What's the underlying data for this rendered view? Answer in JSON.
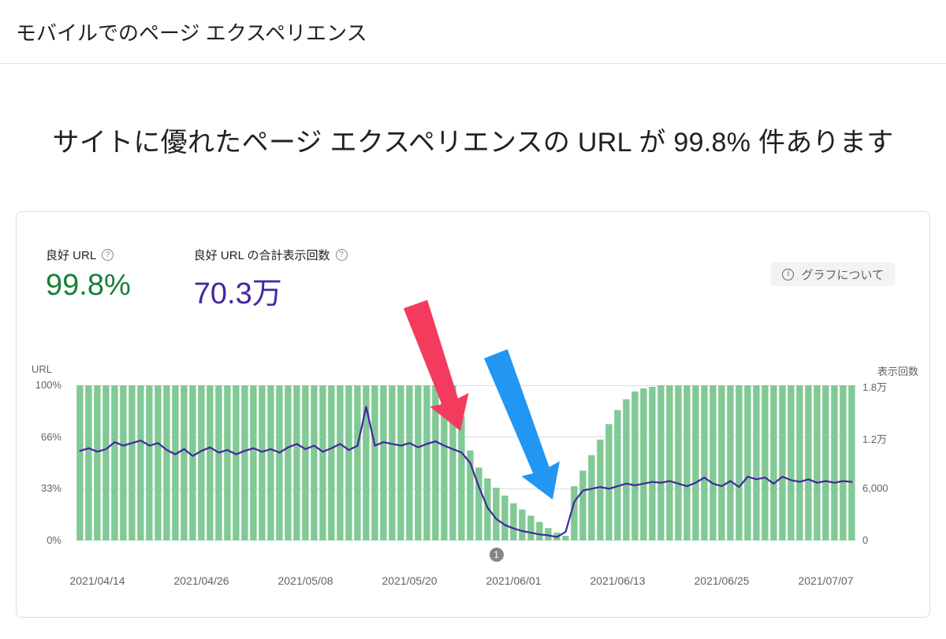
{
  "header": {
    "title": "モバイルでのページ エクスペリエンス"
  },
  "hero": {
    "title": "サイトに優れたページ エクスペリエンスの URL が 99.8% 件あります"
  },
  "card": {
    "metrics": [
      {
        "label": "良好 URL",
        "value": "99.8%",
        "color": "#188038"
      },
      {
        "label": "良好 URL の合計表示回数",
        "value": "70.3万",
        "color": "#4527a0"
      }
    ],
    "about_button": {
      "label": "グラフについて",
      "icon": "i"
    },
    "help_icon_glyph": "?"
  },
  "chart_data": {
    "type": "bar+line",
    "grid": true,
    "legend": "none",
    "left_axis": {
      "title": "URL",
      "max": 100,
      "ticks": [
        {
          "label": "100%",
          "value": 100
        },
        {
          "label": "66%",
          "value": 66.67
        },
        {
          "label": "33%",
          "value": 33.33
        },
        {
          "label": "0%",
          "value": 0
        }
      ]
    },
    "right_axis": {
      "title": "表示回数",
      "max": 1.8,
      "ticks": [
        {
          "label": "1.8万",
          "value": 1.8
        },
        {
          "label": "1.2万",
          "value": 1.2
        },
        {
          "label": "6,000",
          "value": 0.6
        },
        {
          "label": "0",
          "value": 0
        }
      ]
    },
    "x_ticks": [
      {
        "label": "2021/04/14",
        "index": 2
      },
      {
        "label": "2021/04/26",
        "index": 14
      },
      {
        "label": "2021/05/08",
        "index": 26
      },
      {
        "label": "2021/05/20",
        "index": 38
      },
      {
        "label": "2021/06/01",
        "index": 50
      },
      {
        "label": "2021/06/13",
        "index": 62
      },
      {
        "label": "2021/06/25",
        "index": 74
      },
      {
        "label": "2021/07/07",
        "index": 86
      }
    ],
    "bars": {
      "name": "良好 URL",
      "color": "#81c995",
      "values": [
        100,
        100,
        100,
        100,
        100,
        100,
        100,
        100,
        100,
        100,
        100,
        100,
        100,
        100,
        100,
        100,
        100,
        100,
        100,
        100,
        100,
        100,
        100,
        100,
        100,
        100,
        100,
        100,
        100,
        100,
        100,
        100,
        100,
        100,
        100,
        100,
        100,
        100,
        100,
        100,
        100,
        100,
        100,
        100,
        80,
        58,
        47,
        40,
        34,
        29,
        24,
        20,
        16,
        12,
        8,
        5,
        3,
        35,
        45,
        55,
        65,
        75,
        84,
        91,
        96,
        98,
        99,
        100,
        100,
        100,
        100,
        100,
        100,
        100,
        100,
        100,
        100,
        100,
        100,
        100,
        100,
        100,
        100,
        100,
        100,
        100,
        100,
        100,
        100,
        100
      ]
    },
    "line": {
      "name": "表示回数",
      "color": "#4527a0",
      "values": [
        1.04,
        1.07,
        1.03,
        1.06,
        1.14,
        1.1,
        1.13,
        1.16,
        1.1,
        1.13,
        1.05,
        1.0,
        1.06,
        0.98,
        1.04,
        1.08,
        1.02,
        1.05,
        1.0,
        1.04,
        1.07,
        1.03,
        1.06,
        1.02,
        1.08,
        1.12,
        1.06,
        1.1,
        1.03,
        1.07,
        1.12,
        1.05,
        1.1,
        1.55,
        1.1,
        1.14,
        1.12,
        1.1,
        1.13,
        1.08,
        1.12,
        1.15,
        1.1,
        1.06,
        1.02,
        0.9,
        0.62,
        0.38,
        0.25,
        0.18,
        0.14,
        0.11,
        0.09,
        0.07,
        0.06,
        0.04,
        0.1,
        0.45,
        0.58,
        0.6,
        0.62,
        0.6,
        0.63,
        0.66,
        0.64,
        0.66,
        0.68,
        0.67,
        0.69,
        0.66,
        0.63,
        0.67,
        0.73,
        0.66,
        0.63,
        0.69,
        0.62,
        0.74,
        0.71,
        0.73,
        0.66,
        0.74,
        0.7,
        0.68,
        0.71,
        0.67,
        0.69,
        0.67,
        0.69,
        0.68
      ]
    },
    "annotations": [
      {
        "label": "1",
        "index": 48
      }
    ]
  },
  "overlay": {
    "arrows": [
      {
        "name": "pink-arrow",
        "color": "#f33b5e",
        "tip": [
          584,
          547
        ],
        "tail": [
          527,
          386
        ]
      },
      {
        "name": "blue-arrow",
        "color": "#2196f3",
        "tip": [
          701,
          634
        ],
        "tail": [
          629,
          449
        ]
      }
    ]
  }
}
